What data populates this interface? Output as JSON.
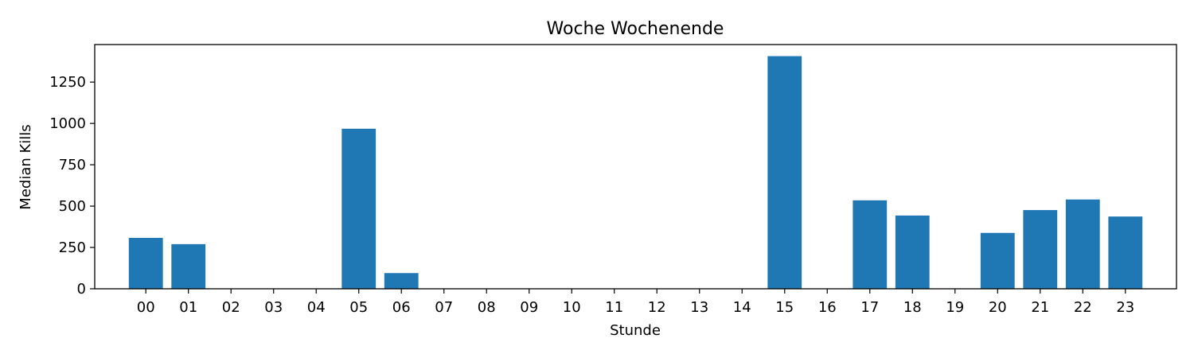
{
  "chart_data": {
    "type": "bar",
    "title": "Woche Wochenende",
    "xlabel": "Stunde",
    "ylabel": "Median Kills",
    "categories": [
      "00",
      "01",
      "02",
      "03",
      "04",
      "05",
      "06",
      "07",
      "08",
      "09",
      "10",
      "11",
      "12",
      "13",
      "14",
      "15",
      "16",
      "17",
      "18",
      "19",
      "20",
      "21",
      "22",
      "23"
    ],
    "values": [
      308,
      270,
      0,
      0,
      0,
      968,
      95,
      0,
      0,
      0,
      0,
      0,
      0,
      0,
      0,
      1407,
      0,
      535,
      443,
      0,
      338,
      476,
      540,
      437
    ],
    "yticks": [
      0,
      250,
      500,
      750,
      1000,
      1250
    ],
    "ylim": [
      0,
      1477
    ],
    "bar_color": "#1f77b4",
    "grid": false,
    "legend": "none"
  }
}
